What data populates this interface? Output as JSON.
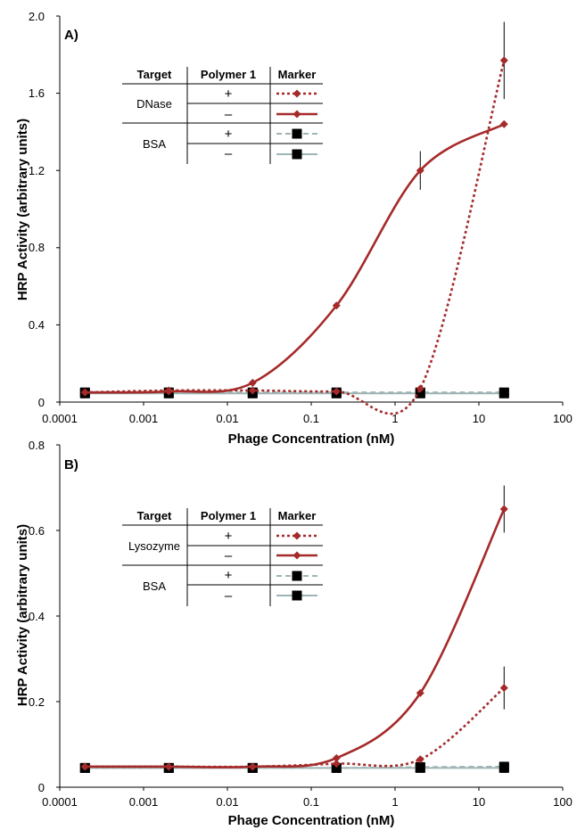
{
  "chart_data": [
    {
      "type": "line",
      "panel_label": "A)",
      "xlabel": "Phage Concentration (nM)",
      "ylabel": "HRP Activity (arbitrary units)",
      "xscale": "log",
      "xlim": [
        0.0001,
        100
      ],
      "ylim": [
        0,
        2.0
      ],
      "xtick_labels": [
        "0.0001",
        "0.001",
        "0.01",
        "0.1",
        "1",
        "10",
        "100"
      ],
      "ytick_labels": [
        "0",
        "0.4",
        "0.8",
        "1.2",
        "1.6",
        "2.0"
      ],
      "legend": {
        "placement": "top-left",
        "headers": [
          "Target",
          "Polymer 1",
          "Marker"
        ],
        "groups": [
          "DNase",
          "BSA"
        ],
        "signs": [
          "+",
          "–",
          "+",
          "–"
        ]
      },
      "series": [
        {
          "target": "DNase",
          "polymer1": "+",
          "color": "#a52a2a",
          "dash": "dotted",
          "marker": "diamond",
          "x": [
            0.0002,
            0.002,
            0.02,
            0.2,
            2,
            20
          ],
          "y": [
            0.05,
            0.06,
            0.06,
            0.055,
            0.07,
            1.77
          ],
          "err": [
            0,
            0,
            0,
            0,
            0,
            0.2
          ]
        },
        {
          "target": "DNase",
          "polymer1": "–",
          "color": "#a52a2a",
          "dash": "solid",
          "marker": "diamond",
          "x": [
            0.0002,
            0.002,
            0.02,
            0.2,
            2,
            20
          ],
          "y": [
            0.05,
            0.055,
            0.1,
            0.5,
            1.2,
            1.44
          ],
          "err": [
            0,
            0,
            0,
            0,
            0.1,
            0
          ]
        },
        {
          "target": "BSA",
          "polymer1": "+",
          "color": "#9fb4b4",
          "dash": "dashed",
          "marker": "square",
          "x": [
            0.0002,
            0.002,
            0.02,
            0.2,
            2,
            20
          ],
          "y": [
            0.05,
            0.05,
            0.05,
            0.05,
            0.05,
            0.05
          ],
          "err": [
            0,
            0,
            0,
            0,
            0,
            0
          ]
        },
        {
          "target": "BSA",
          "polymer1": "–",
          "color": "#9fb4b4",
          "dash": "solid",
          "marker": "square",
          "x": [
            0.0002,
            0.002,
            0.02,
            0.2,
            2,
            20
          ],
          "y": [
            0.045,
            0.045,
            0.045,
            0.045,
            0.045,
            0.045
          ],
          "err": [
            0,
            0,
            0,
            0,
            0,
            0
          ]
        }
      ]
    },
    {
      "type": "line",
      "panel_label": "B)",
      "xlabel": "Phage Concentration (nM)",
      "ylabel": "HRP Activity (arbitrary units)",
      "xscale": "log",
      "xlim": [
        0.0001,
        100
      ],
      "ylim": [
        0,
        0.8
      ],
      "xtick_labels": [
        "0.0001",
        "0.001",
        "0.01",
        "0.1",
        "1",
        "10",
        "100"
      ],
      "ytick_labels": [
        "0",
        "0.2",
        "0.4",
        "0.6",
        "0.8"
      ],
      "legend": {
        "placement": "top-left",
        "headers": [
          "Target",
          "Polymer 1",
          "Marker"
        ],
        "groups": [
          "Lysozyme",
          "BSA"
        ],
        "signs": [
          "+",
          "–",
          "+",
          "–"
        ]
      },
      "series": [
        {
          "target": "Lysozyme",
          "polymer1": "+",
          "color": "#a52a2a",
          "dash": "dotted",
          "marker": "diamond",
          "x": [
            0.0002,
            0.002,
            0.02,
            0.2,
            2,
            20
          ],
          "y": [
            0.048,
            0.048,
            0.048,
            0.055,
            0.065,
            0.232
          ],
          "err": [
            0,
            0,
            0,
            0,
            0,
            0.05
          ]
        },
        {
          "target": "Lysozyme",
          "polymer1": "–",
          "color": "#a52a2a",
          "dash": "solid",
          "marker": "diamond",
          "x": [
            0.0002,
            0.002,
            0.02,
            0.2,
            2,
            20
          ],
          "y": [
            0.048,
            0.048,
            0.048,
            0.068,
            0.22,
            0.65
          ],
          "err": [
            0,
            0,
            0,
            0,
            0,
            0.055
          ]
        },
        {
          "target": "BSA",
          "polymer1": "+",
          "color": "#9fb4b4",
          "dash": "dashed",
          "marker": "square",
          "x": [
            0.0002,
            0.002,
            0.02,
            0.2,
            2,
            20
          ],
          "y": [
            0.045,
            0.045,
            0.045,
            0.045,
            0.047,
            0.048
          ],
          "err": [
            0,
            0,
            0,
            0,
            0,
            0
          ]
        },
        {
          "target": "BSA",
          "polymer1": "–",
          "color": "#9fb4b4",
          "dash": "solid",
          "marker": "square",
          "x": [
            0.0002,
            0.002,
            0.02,
            0.2,
            2,
            20
          ],
          "y": [
            0.045,
            0.045,
            0.045,
            0.045,
            0.045,
            0.045
          ],
          "err": [
            0,
            0,
            0,
            0,
            0,
            0
          ]
        }
      ]
    }
  ]
}
